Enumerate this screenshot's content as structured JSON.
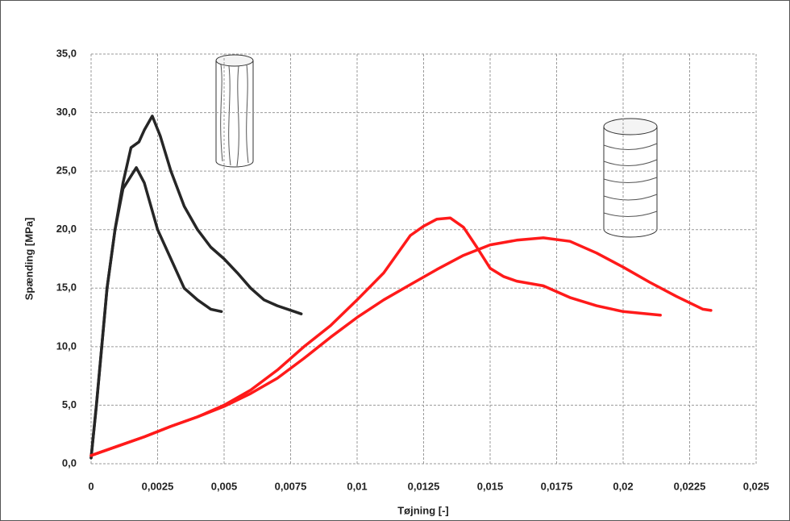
{
  "chart_data": {
    "type": "line",
    "x_label": "Tøjning [-]",
    "y_label": "Spænding [MPa]",
    "xlim": [
      0,
      0.025
    ],
    "ylim": [
      0,
      35
    ],
    "xticks": [
      0,
      {
        "value": 0.0025,
        "label": "0,0025"
      },
      {
        "value": 0.005,
        "label": "0,005"
      },
      {
        "value": 0.0075,
        "label": "0,0075"
      },
      {
        "value": 0.01,
        "label": "0,01"
      },
      {
        "value": 0.0125,
        "label": "0,0125"
      },
      {
        "value": 0.015,
        "label": "0,015"
      },
      {
        "value": 0.0175,
        "label": "0,0175"
      },
      {
        "value": 0.02,
        "label": "0,02"
      },
      {
        "value": 0.0225,
        "label": "0,0225"
      },
      {
        "value": 0.025,
        "label": "0,025"
      }
    ],
    "yticks": [
      {
        "value": 0,
        "label": "0,0"
      },
      {
        "value": 5,
        "label": "5,0"
      },
      {
        "value": 10,
        "label": "10,0"
      },
      {
        "value": 15,
        "label": "15,0"
      },
      {
        "value": 20,
        "label": "20,0"
      },
      {
        "value": 25,
        "label": "25,0"
      },
      {
        "value": 30,
        "label": "30,0"
      },
      {
        "value": 35,
        "label": "35,0"
      }
    ],
    "grid": true,
    "series": [
      {
        "color": "#262626",
        "x": [
          0,
          0.0002,
          0.0004,
          0.0006,
          0.0009,
          0.0012,
          0.0015,
          0.0018,
          0.002,
          0.0023,
          0.0026,
          0.003,
          0.0035,
          0.004,
          0.0045,
          0.005,
          0.0055,
          0.006,
          0.0065,
          0.007,
          0.0079
        ],
        "values": [
          0.5,
          5,
          10,
          15,
          20,
          24,
          27,
          27.5,
          28.5,
          29.7,
          28,
          25,
          22,
          20,
          18.5,
          17.5,
          16.3,
          15,
          14,
          13.5,
          12.8
        ]
      },
      {
        "color": "#262626",
        "x": [
          0,
          0.0002,
          0.0004,
          0.0006,
          0.0009,
          0.0012,
          0.0017,
          0.002,
          0.0025,
          0.003,
          0.0035,
          0.004,
          0.0045,
          0.0049
        ],
        "values": [
          0.5,
          5,
          10,
          15,
          20,
          23.5,
          25.3,
          24,
          20,
          17.5,
          15,
          14,
          13.2,
          13
        ]
      },
      {
        "color": "#ff1a1a",
        "x": [
          0,
          0.001,
          0.002,
          0.003,
          0.004,
          0.005,
          0.006,
          0.007,
          0.008,
          0.009,
          0.01,
          0.011,
          0.012,
          0.0125,
          0.013,
          0.0135,
          0.014,
          0.0145,
          0.015,
          0.0155,
          0.016,
          0.017,
          0.018,
          0.019,
          0.02,
          0.0214
        ],
        "values": [
          0.7,
          1.5,
          2.3,
          3.2,
          4.0,
          5.0,
          6.3,
          8.0,
          10,
          11.8,
          14,
          16.3,
          19.5,
          20.3,
          20.9,
          21,
          20.2,
          18.5,
          16.7,
          16,
          15.6,
          15.2,
          14.2,
          13.5,
          13,
          12.7
        ]
      },
      {
        "color": "#ff1a1a",
        "x": [
          0,
          0.001,
          0.002,
          0.003,
          0.004,
          0.005,
          0.006,
          0.007,
          0.008,
          0.009,
          0.01,
          0.011,
          0.012,
          0.013,
          0.014,
          0.015,
          0.016,
          0.017,
          0.018,
          0.019,
          0.02,
          0.021,
          0.022,
          0.023,
          0.0233
        ],
        "values": [
          0.7,
          1.5,
          2.3,
          3.2,
          4.0,
          4.9,
          6.0,
          7.3,
          9.0,
          10.8,
          12.5,
          14,
          15.3,
          16.6,
          17.8,
          18.7,
          19.1,
          19.3,
          19,
          18,
          16.8,
          15.5,
          14.3,
          13.2,
          13.1
        ]
      }
    ]
  }
}
